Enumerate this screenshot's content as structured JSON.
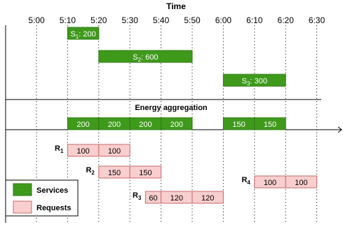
{
  "title": "Time",
  "time_ticks": [
    "5:00",
    "5:10",
    "5:20",
    "5:30",
    "5:40",
    "5:50",
    "6:00",
    "6:10",
    "6:20",
    "6:30"
  ],
  "colors": {
    "service_fill": "#3f9a1c",
    "service_stroke": "#2f7a12",
    "request_fill": "#f8cece",
    "request_stroke": "#c76b6b"
  },
  "services": [
    {
      "base": "S",
      "sub": "1",
      "value": "200",
      "start": "5:10",
      "end": "5:20"
    },
    {
      "base": "S",
      "sub": "2",
      "value": "600",
      "start": "5:20",
      "end": "5:50"
    },
    {
      "base": "S",
      "sub": "3",
      "value": "300",
      "start": "6:00",
      "end": "6:20"
    }
  ],
  "energy_aggregation": {
    "label": "Energy aggregation",
    "cells": [
      {
        "start": "5:10",
        "end": "5:20",
        "value": "200"
      },
      {
        "start": "5:20",
        "end": "5:30",
        "value": "200"
      },
      {
        "start": "5:30",
        "end": "5:40",
        "value": "200"
      },
      {
        "start": "5:40",
        "end": "5:50",
        "value": "200"
      },
      {
        "start": "6:00",
        "end": "6:10",
        "value": "150"
      },
      {
        "start": "6:10",
        "end": "6:20",
        "value": "150"
      }
    ]
  },
  "requests": [
    {
      "base": "R",
      "sub": "1",
      "cells": [
        {
          "start": "5:10",
          "end": "5:20",
          "value": "100"
        },
        {
          "start": "5:20",
          "end": "5:30",
          "value": "100"
        }
      ]
    },
    {
      "base": "R",
      "sub": "2",
      "cells": [
        {
          "start": "5:20",
          "end": "5:30",
          "value": "150"
        },
        {
          "start": "5:30",
          "end": "5:40",
          "value": "150"
        }
      ]
    },
    {
      "base": "R",
      "sub": "3",
      "cells": [
        {
          "start": "5:35",
          "end": "5:40",
          "value": "60"
        },
        {
          "start": "5:40",
          "end": "5:50",
          "value": "120"
        },
        {
          "start": "5:50",
          "end": "6:00",
          "value": "120"
        }
      ]
    },
    {
      "base": "R",
      "sub": "4",
      "cells": [
        {
          "start": "6:10",
          "end": "6:20",
          "value": "100"
        },
        {
          "start": "6:20",
          "end": "6:30",
          "value": "100"
        }
      ]
    }
  ],
  "legend": {
    "services_label": "Services",
    "requests_label": "Requests"
  }
}
